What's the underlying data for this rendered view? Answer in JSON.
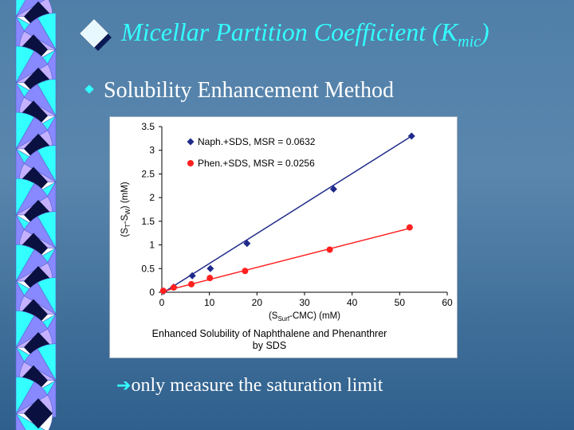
{
  "slide": {
    "title_main": "Micellar Partition Coefficient (K",
    "title_sub": "mic",
    "title_close": ")",
    "bullet": "Solubility Enhancement Method",
    "note_arrow": "➔",
    "note": "only measure the saturation limit"
  },
  "colors": {
    "accent": "#33ffff",
    "series_naph": "#1f2a8a",
    "series_phen": "#ff2020"
  },
  "chart_data": {
    "type": "scatter",
    "title": "",
    "caption_line1": "Enhanced Solubility of Naphthalene and Phenanthrer",
    "caption_line2": "by SDS",
    "xlabel_pre": "(S",
    "xlabel_sub": "Surf",
    "xlabel_post": "-CMC) (mM)",
    "ylabel_pre": "(S",
    "ylabel_sub1": "T",
    "ylabel_mid": "-S",
    "ylabel_sub2": "W",
    "ylabel_post": ") (mM)",
    "xlim": [
      0,
      60
    ],
    "ylim": [
      0,
      3.5
    ],
    "xticks": [
      "0",
      "10",
      "20",
      "30",
      "40",
      "50",
      "60"
    ],
    "yticks": [
      "0",
      "0.5",
      "1",
      "1.5",
      "2",
      "2.5",
      "3",
      "3.5"
    ],
    "legend_position": "top-left",
    "grid": false,
    "series": [
      {
        "name": "Naph.+SDS, MSR = 0.0632",
        "marker": "diamond",
        "x": [
          0.4,
          2.5,
          6.4,
          10.2,
          17.9,
          36.1,
          52.5
        ],
        "y": [
          0.02,
          0.11,
          0.35,
          0.5,
          1.03,
          2.18,
          3.3
        ],
        "fit": {
          "x": [
            0.4,
            52.5
          ],
          "y": [
            0.0,
            3.3
          ]
        }
      },
      {
        "name": "Phen.+SDS, MSR = 0.0256",
        "marker": "circle",
        "x": [
          0.3,
          2.5,
          6.2,
          10.1,
          17.5,
          35.3,
          52.1
        ],
        "y": [
          0.03,
          0.1,
          0.17,
          0.3,
          0.45,
          0.9,
          1.37
        ],
        "fit": {
          "x": [
            0.3,
            52.1
          ],
          "y": [
            0.02,
            1.35
          ]
        }
      }
    ]
  }
}
